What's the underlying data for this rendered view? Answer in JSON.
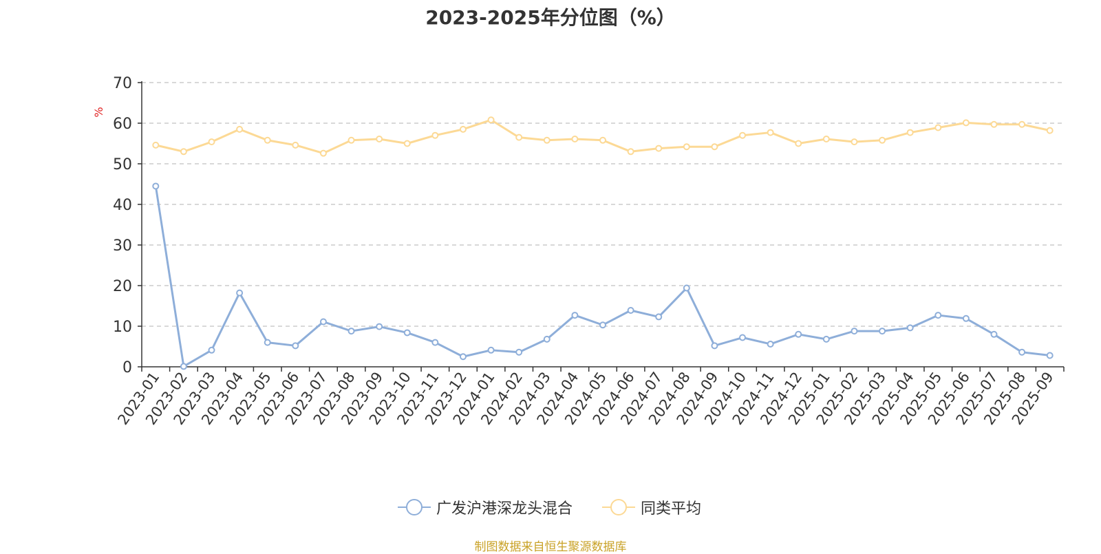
{
  "chart_data": {
    "type": "line",
    "title": "2023-2025年分位图（%）",
    "ylabel": "%",
    "xlabel": "",
    "ylim": [
      0,
      70
    ],
    "yticks": [
      0,
      10,
      20,
      30,
      40,
      50,
      60,
      70
    ],
    "grid": true,
    "legend_position": "bottom",
    "categories": [
      "2023-01",
      "2023-02",
      "2023-03",
      "2023-04",
      "2023-05",
      "2023-06",
      "2023-07",
      "2023-08",
      "2023-09",
      "2023-10",
      "2023-11",
      "2023-12",
      "2024-01",
      "2024-02",
      "2024-03",
      "2024-04",
      "2024-05",
      "2024-06",
      "2024-07",
      "2024-08",
      "2024-09",
      "2024-10",
      "2024-11",
      "2024-12",
      "2025-01",
      "2025-02",
      "2025-03",
      "2025-04",
      "2025-05",
      "2025-06",
      "2025-07",
      "2025-08",
      "2025-09"
    ],
    "series": [
      {
        "name": "广发沪港深龙头混合",
        "color": "#8eaed9",
        "values": [
          44.5,
          0.1,
          4.1,
          18.2,
          6.0,
          5.2,
          11.1,
          8.8,
          9.9,
          8.4,
          6.0,
          2.5,
          4.1,
          3.6,
          6.8,
          12.7,
          10.3,
          13.9,
          12.3,
          19.4,
          5.2,
          7.2,
          5.6,
          8.0,
          6.8,
          8.8,
          8.8,
          9.6,
          12.7,
          11.9,
          8.0,
          3.6,
          2.8
        ]
      },
      {
        "name": "同类平均",
        "color": "#fcd995",
        "values": [
          54.6,
          53.0,
          55.4,
          58.5,
          55.8,
          54.6,
          52.6,
          55.8,
          56.1,
          55.0,
          57.0,
          58.5,
          60.8,
          56.5,
          55.8,
          56.1,
          55.8,
          53.0,
          53.8,
          54.2,
          54.2,
          57.0,
          57.7,
          55.0,
          56.1,
          55.4,
          55.8,
          57.7,
          58.9,
          60.1,
          59.7,
          59.7,
          58.2
        ]
      }
    ]
  },
  "footer": {
    "source": "制图数据来自恒生聚源数据库"
  }
}
